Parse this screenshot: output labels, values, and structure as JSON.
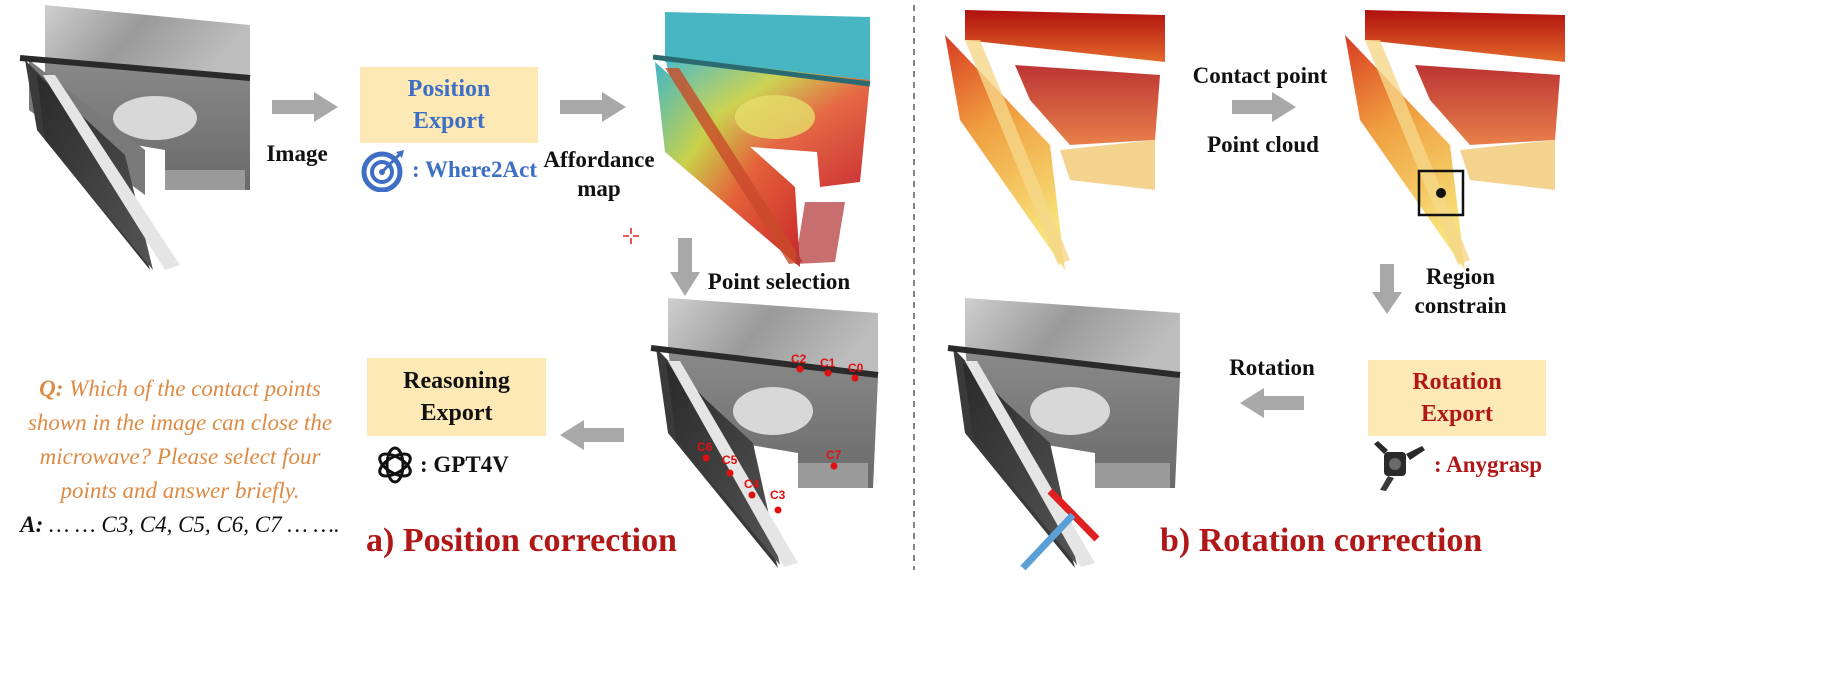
{
  "left": {
    "input_label": "Image",
    "position_box": {
      "line1": "Position",
      "line2": "Export",
      "color": "#3f6fc4"
    },
    "where2act": {
      "text": ": Where2Act",
      "color": "#3f6fc4",
      "icon": "target-icon"
    },
    "affordance_label": {
      "line1": "Affordance",
      "line2": "map"
    },
    "point_selection": "Point selection",
    "contact_labels": [
      "C2",
      "C1",
      "C0",
      "C6",
      "C5",
      "C4",
      "C3",
      "C7"
    ],
    "reasoning_box": {
      "line1": "Reasoning",
      "line2": "Export"
    },
    "gpt": {
      "text": ": GPT4V",
      "icon": "openai-icon"
    },
    "qa": {
      "q_prefix": "Q:",
      "q_lines": [
        " Which of the contact points",
        "shown in the image can close the",
        "microwave? Please select four",
        "points and answer briefly."
      ],
      "a_prefix": "A:",
      "a_text": " … … C3, C4, C5, C6, C7 … ….",
      "q_color": "#dd8a44"
    },
    "caption": "a) Position correction"
  },
  "right": {
    "contact_point": "Contact point",
    "point_cloud": "Point cloud",
    "region_label": {
      "line1": "Region",
      "line2": "constrain"
    },
    "rotation_label": "Rotation",
    "rotation_box": {
      "line1": "Rotation",
      "line2": "Export",
      "color": "#b01818"
    },
    "anygrasp": {
      "text": ": Anygrasp",
      "color": "#b01818",
      "icon": "gripper-icon"
    },
    "caption": "b) Rotation correction"
  },
  "colors": {
    "box_fill": "#fce9b5",
    "arrow": "#a8a8a8",
    "caption": "#b01818"
  }
}
